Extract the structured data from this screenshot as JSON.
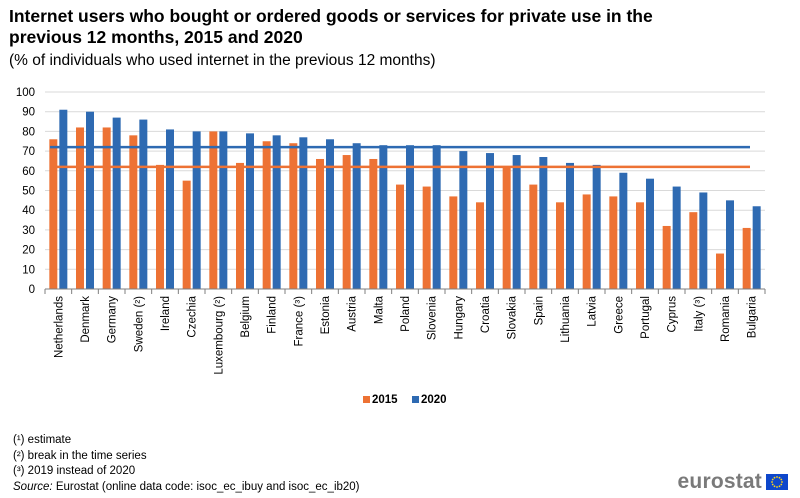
{
  "title": "Internet users who bought or ordered goods or services for private use in the previous 12 months, 2015 and 2020",
  "subtitle": "(% of individuals who used internet in the previous 12 months)",
  "notes": [
    "(¹) estimate",
    "(²) break in the time series",
    "(³) 2019 instead of 2020"
  ],
  "source": {
    "label": "Source:",
    "text": "Eurostat (online data code: isoc_ec_ibuy and isoc_ec_ib20)"
  },
  "logo": {
    "text": "eurostat"
  },
  "colors": {
    "series_2015": "#ed7234",
    "series_2020": "#2e6ab2",
    "grid": "#d9d9d9",
    "axis": "#7f7f7f"
  },
  "chart_data": {
    "type": "bar",
    "categories": [
      "Netherlands",
      "Denmark",
      "Germany",
      "Sweden (²)",
      "Ireland",
      "Czechia",
      "Luxembourg (²)",
      "Belgium",
      "Finland",
      "France (³)",
      "Estonia",
      "Austria",
      "Malta",
      "Poland",
      "Slovenia",
      "Hungary",
      "Croatia",
      "Slovakia",
      "Spain",
      "Lithuania",
      "Latvia",
      "Greece",
      "Portugal",
      "Cyprus",
      "Italy (³)",
      "Romania",
      "Bulgaria"
    ],
    "series": [
      {
        "name": "2015",
        "color": "#ed7234",
        "values": [
          76,
          82,
          82,
          78,
          63,
          55,
          80,
          64,
          75,
          74,
          66,
          68,
          66,
          53,
          52,
          47,
          44,
          62,
          53,
          44,
          48,
          47,
          44,
          32,
          39,
          18,
          31
        ]
      },
      {
        "name": "2020",
        "color": "#2e6ab2",
        "values": [
          91,
          90,
          87,
          86,
          81,
          80,
          80,
          79,
          78,
          77,
          76,
          74,
          73,
          73,
          73,
          70,
          69,
          68,
          67,
          64,
          63,
          59,
          56,
          52,
          49,
          45,
          42
        ]
      }
    ],
    "reference_lines": [
      {
        "series": "2015",
        "value": 62
      },
      {
        "series": "2020",
        "value": 72
      }
    ],
    "yticks": [
      0,
      10,
      20,
      30,
      40,
      50,
      60,
      70,
      80,
      90,
      100
    ],
    "ylim": [
      0,
      100
    ],
    "grid": true,
    "legend": {
      "position": "bottom",
      "entries": [
        "2015",
        "2020"
      ]
    }
  }
}
